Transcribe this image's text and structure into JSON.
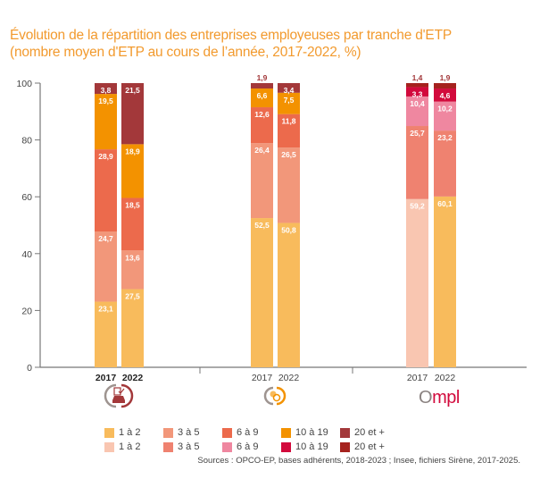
{
  "title": {
    "line1": "Évolution de la répartition des entreprises employeuses par tranche d'ETP",
    "line2": "(nombre moyen d'ETP au cours de l’année, 2017-2022, %)"
  },
  "chart_data": {
    "type": "bar",
    "stacked": true,
    "title": "Évolution de la répartition des entreprises employeuses par tranche d'ETP (nombre moyen d'ETP au cours de l’année, 2017-2022, %)",
    "xlabel": "",
    "ylabel": "",
    "ylim": [
      0,
      100
    ],
    "yticks": [
      0,
      20,
      40,
      60,
      80,
      100
    ],
    "grid": false,
    "legend_position": "bottom",
    "categories_labels": [
      "1 à 2",
      "3 à 5",
      "6 à 9",
      "10 à 19",
      "20 et +"
    ],
    "groups": [
      {
        "name": "group-car",
        "logo": "car-checklist-icon",
        "bold_years": true,
        "bars": [
          {
            "year": "2017",
            "values": [
              23.1,
              24.7,
              28.9,
              19.5,
              3.8
            ],
            "labels": [
              "23,1",
              "24,7",
              "28,9",
              "19,5",
              "3,8"
            ]
          },
          {
            "year": "2022",
            "values": [
              27.5,
              13.6,
              18.5,
              18.9,
              21.5
            ],
            "labels": [
              "27,5",
              "13,6",
              "18,5",
              "18,9",
              "21,5"
            ]
          }
        ],
        "colors": [
          "#f8bb5c",
          "#f2977a",
          "#ec6a4c",
          "#f39200",
          "#a3383a"
        ]
      },
      {
        "name": "group-opco-ep",
        "logo": "opco-ep-icon",
        "bold_years": false,
        "bars": [
          {
            "year": "2017",
            "values": [
              52.5,
              26.4,
              12.6,
              6.6,
              1.9
            ],
            "labels": [
              "52,5",
              "26,4",
              "12,6",
              "6,6",
              "1,9"
            ]
          },
          {
            "year": "2022",
            "values": [
              50.8,
              26.5,
              11.8,
              7.5,
              3.4
            ],
            "labels": [
              "50,8",
              "26,5",
              "11,8",
              "7,5",
              "3,4"
            ]
          }
        ],
        "colors": [
          "#f8bb5c",
          "#f2977a",
          "#ec6a4c",
          "#f39200",
          "#a3383a"
        ]
      },
      {
        "name": "group-ompl",
        "logo": "Ompl",
        "bold_years": false,
        "bars": [
          {
            "year": "2017",
            "values": [
              59.2,
              25.7,
              10.4,
              3.3,
              1.4
            ],
            "labels": [
              "59,2",
              "25,7",
              "10,4",
              "3,3",
              "1,4"
            ],
            "colors": [
              "#f9c6b1",
              "#ef8270",
              "#ef87a0",
              "#d20a3c",
              "#a5221e"
            ]
          },
          {
            "year": "2022",
            "values": [
              60.1,
              23.2,
              10.2,
              4.6,
              1.9
            ],
            "labels": [
              "60,1",
              "23,2",
              "10,2",
              "4,6",
              "1,9"
            ],
            "colors": [
              "#f8bb5c",
              "#ef8270",
              "#ef87a0",
              "#d20a3c",
              "#a5221e"
            ]
          }
        ]
      }
    ],
    "legend": [
      {
        "row": 1,
        "items": [
          {
            "label": "1 à 2",
            "color": "#f8bb5c"
          },
          {
            "label": "3 à 5",
            "color": "#f2977a"
          },
          {
            "label": "6 à 9",
            "color": "#ec6a4c"
          },
          {
            "label": "10 à 19",
            "color": "#f39200"
          },
          {
            "label": "20 et +",
            "color": "#a3383a"
          }
        ]
      },
      {
        "row": 2,
        "items": [
          {
            "label": "1 à 2",
            "color": "#f9c6b1"
          },
          {
            "label": "3 à 5",
            "color": "#ef8270"
          },
          {
            "label": "6 à 9",
            "color": "#ef87a0"
          },
          {
            "label": "10 à 19",
            "color": "#d20a3c"
          },
          {
            "label": "20 et +",
            "color": "#a5221e"
          }
        ]
      }
    ]
  },
  "logos": {
    "ompl_text_o": "O",
    "ompl_text_rest": "mpl"
  },
  "source": "Sources : OPCO-EP, bases adhérents, 2018-2023 ; Insee, fichiers Sirène, 2017-2025."
}
